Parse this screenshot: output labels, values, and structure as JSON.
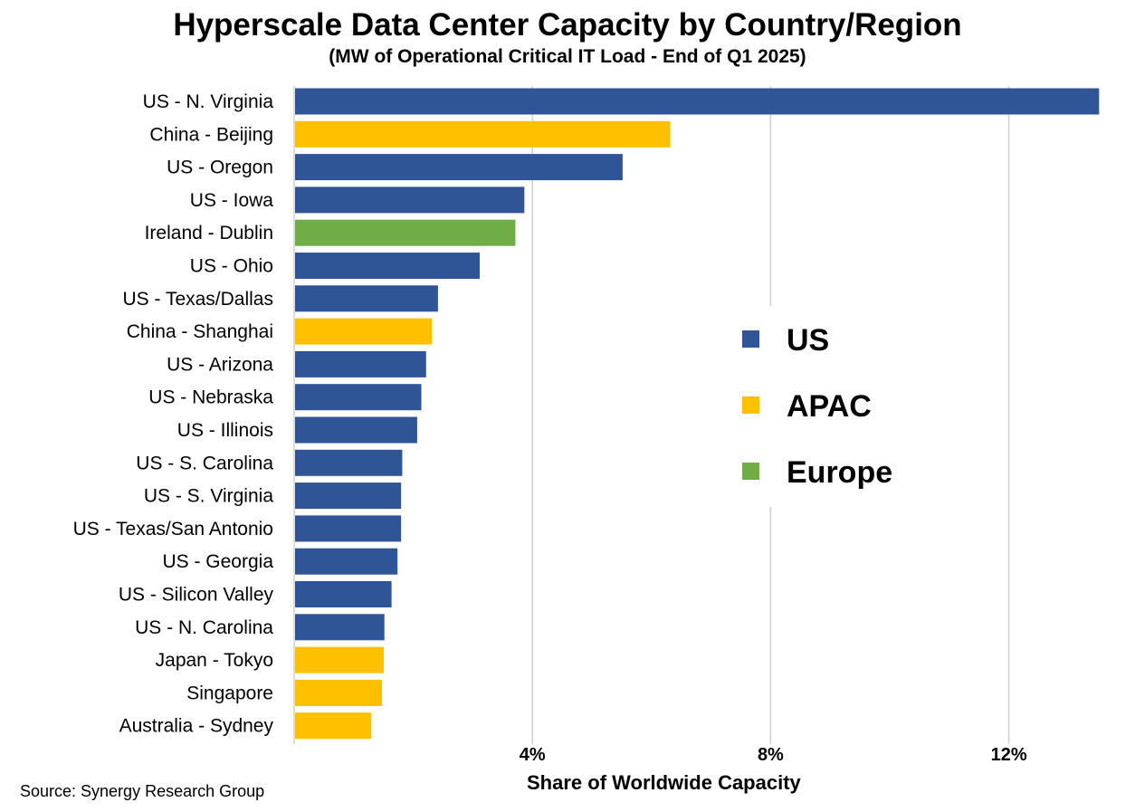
{
  "chart_data": {
    "type": "bar",
    "orientation": "horizontal",
    "title": "Hyperscale Data Center Capacity by Country/Region",
    "subtitle": "(MW of Operational Critical IT Load - End of Q1 2025)",
    "xlabel": "Share of Worldwide Capacity",
    "ylabel": "",
    "xlim": [
      0,
      13.6
    ],
    "xticks": [
      4,
      8,
      12
    ],
    "xtick_labels": [
      "4%",
      "8%",
      "12%"
    ],
    "grid": "vertical",
    "legend_placement": "center-right",
    "legend": [
      {
        "name": "US",
        "color": "#2F5597"
      },
      {
        "name": "APAC",
        "color": "#FFC000"
      },
      {
        "name": "Europe",
        "color": "#70AD47"
      }
    ],
    "categories": [
      "US - N. Virginia",
      "China - Beijing",
      "US - Oregon",
      "US - Iowa",
      "Ireland - Dublin",
      "US - Ohio",
      "US - Texas/Dallas",
      "China - Shanghai",
      "US - Arizona",
      "US - Nebraska",
      "US - Illinois",
      "US - S. Carolina",
      "US - S. Virginia",
      "US - Texas/San Antonio",
      "US - Georgia",
      "US - Silicon Valley",
      "US - N. Carolina",
      "Japan - Tokyo",
      "Singapore",
      "Australia - Sydney"
    ],
    "values": [
      13.5,
      6.3,
      5.5,
      3.85,
      3.7,
      3.1,
      2.4,
      2.3,
      2.2,
      2.12,
      2.05,
      1.8,
      1.78,
      1.78,
      1.72,
      1.62,
      1.5,
      1.49,
      1.46,
      1.28
    ],
    "groups": [
      "US",
      "APAC",
      "US",
      "US",
      "Europe",
      "US",
      "US",
      "APAC",
      "US",
      "US",
      "US",
      "US",
      "US",
      "US",
      "US",
      "US",
      "US",
      "APAC",
      "APAC",
      "APAC"
    ]
  },
  "source": "Source: Synergy Research Group"
}
